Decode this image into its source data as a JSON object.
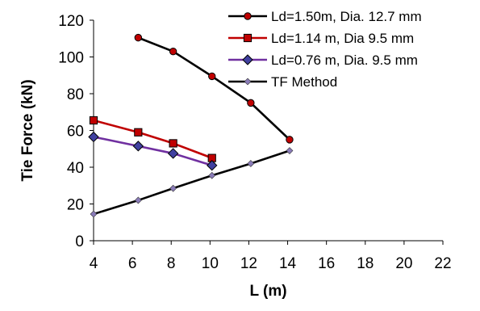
{
  "chart_data": {
    "type": "line",
    "title": "",
    "xlabel": "L (m)",
    "ylabel": "Tie Force (kN)",
    "xlim": [
      4,
      22
    ],
    "ylim": [
      0,
      120
    ],
    "x_ticks": [
      "4",
      "6",
      "8",
      "10",
      "12",
      "14",
      "16",
      "18",
      "20",
      "22"
    ],
    "y_ticks": [
      "0",
      "20",
      "40",
      "60",
      "80",
      "100",
      "120"
    ],
    "grid": false,
    "legend_position": "top-right",
    "series": [
      {
        "name": "Ld=1.50m, Dia. 12.7 mm",
        "color": "#000000",
        "marker": "circle",
        "marker_color": "#c00000",
        "x": [
          6.3,
          8.1,
          10.1,
          12.1,
          14.1
        ],
        "y": [
          110.5,
          103,
          89.5,
          75,
          55
        ]
      },
      {
        "name": "Ld=1.14 m, Dia 9.5 mm",
        "color": "#c00000",
        "marker": "square",
        "marker_color": "#c00000",
        "x": [
          4,
          6.3,
          8.1,
          10.1
        ],
        "y": [
          65.5,
          59,
          53,
          45
        ]
      },
      {
        "name": "Ld=0.76 m, Dia. 9.5 mm",
        "color": "#7030a0",
        "marker": "diamond",
        "marker_color": "#4040a0",
        "x": [
          4,
          6.3,
          8.1,
          10.1
        ],
        "y": [
          56.5,
          51.5,
          47.5,
          41
        ]
      },
      {
        "name": "TF Method",
        "color": "#000000",
        "marker": "small-diamond",
        "marker_color": "#8a7cb8",
        "x": [
          4,
          6.3,
          8.1,
          10.1,
          12.1,
          14.1
        ],
        "y": [
          14.5,
          22,
          28.5,
          35.5,
          42,
          49
        ]
      }
    ]
  }
}
